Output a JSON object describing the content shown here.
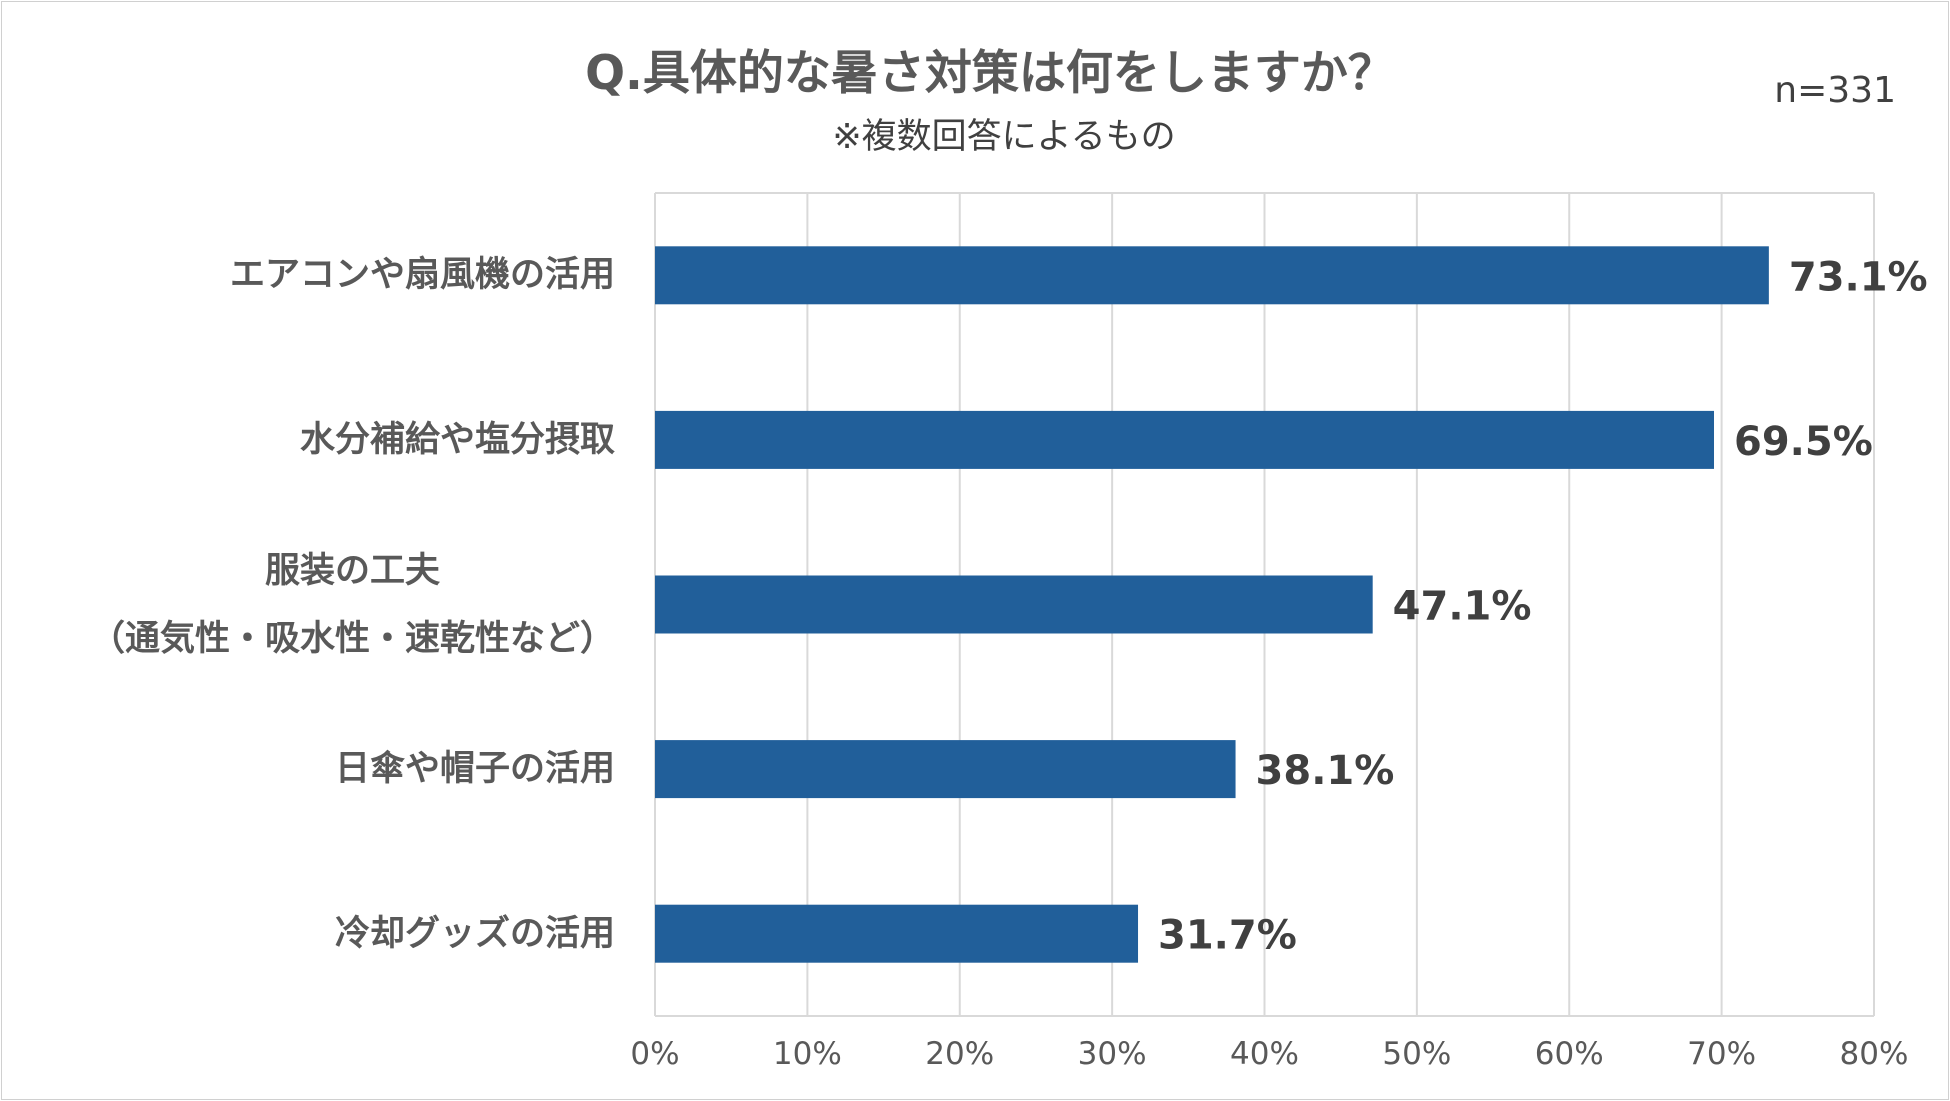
{
  "title": "Q.具体的な暑さ対策は何をしますか？",
  "subtitle": "※複数回答によるもの",
  "sample_size": "n=331",
  "colors": {
    "bar": "#215f9a",
    "grid": "#d9d9d9",
    "text": "#404040"
  },
  "chart_data": {
    "type": "bar",
    "orientation": "horizontal",
    "categories": [
      [
        "エアコンや扇風機の活用"
      ],
      [
        "水分補給や塩分摂取"
      ],
      [
        "服装の工夫",
        "（通気性・吸水性・速乾性など）"
      ],
      [
        "日傘や帽子の活用"
      ],
      [
        "冷却グッズの活用"
      ]
    ],
    "values": [
      73.1,
      69.5,
      47.1,
      38.1,
      31.7
    ],
    "data_labels": [
      "73.1%",
      "69.5%",
      "47.1%",
      "38.1%",
      "31.7%"
    ],
    "xlim": [
      0,
      80
    ],
    "x_ticks": [
      "0%",
      "10%",
      "20%",
      "30%",
      "40%",
      "50%",
      "60%",
      "70%",
      "80%"
    ],
    "grid": true,
    "legend": "none"
  }
}
